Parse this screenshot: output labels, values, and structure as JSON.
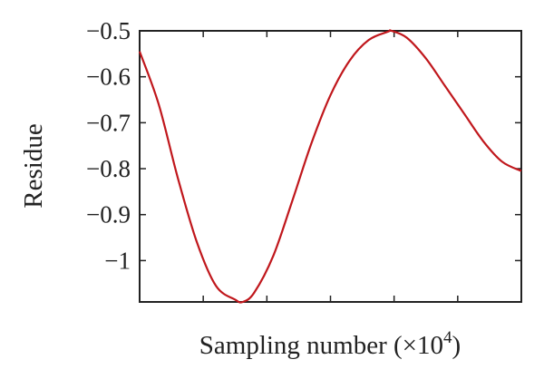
{
  "chart_data": {
    "type": "line",
    "title": "",
    "xlabel": "Sampling number (×10",
    "xlabel_exponent": "4",
    "xlabel_suffix": ")",
    "ylabel": "Residue",
    "xlim": [
      0,
      1
    ],
    "ylim": [
      -1.09,
      -0.5
    ],
    "yticks": [
      -0.5,
      -0.6,
      -0.7,
      -0.8,
      -0.9,
      -1
    ],
    "ytick_labels": [
      "−0.5",
      "−0.6",
      "−0.7",
      "−0.8",
      "−0.9",
      "−1"
    ],
    "xtick_labels_shown": false,
    "grid": false,
    "series": [
      {
        "color": "#c0171c",
        "x": [
          0.0,
          0.05,
          0.1,
          0.15,
          0.2,
          0.25,
          0.27,
          0.3,
          0.35,
          0.4,
          0.45,
          0.5,
          0.55,
          0.6,
          0.65,
          0.66,
          0.7,
          0.75,
          0.8,
          0.85,
          0.9,
          0.95,
          1.0
        ],
        "y": [
          -0.545,
          -0.66,
          -0.82,
          -0.96,
          -1.055,
          -1.085,
          -1.09,
          -1.07,
          -0.99,
          -0.87,
          -0.745,
          -0.64,
          -0.565,
          -0.52,
          -0.502,
          -0.5,
          -0.515,
          -0.56,
          -0.62,
          -0.68,
          -0.74,
          -0.785,
          -0.805
        ]
      }
    ]
  }
}
